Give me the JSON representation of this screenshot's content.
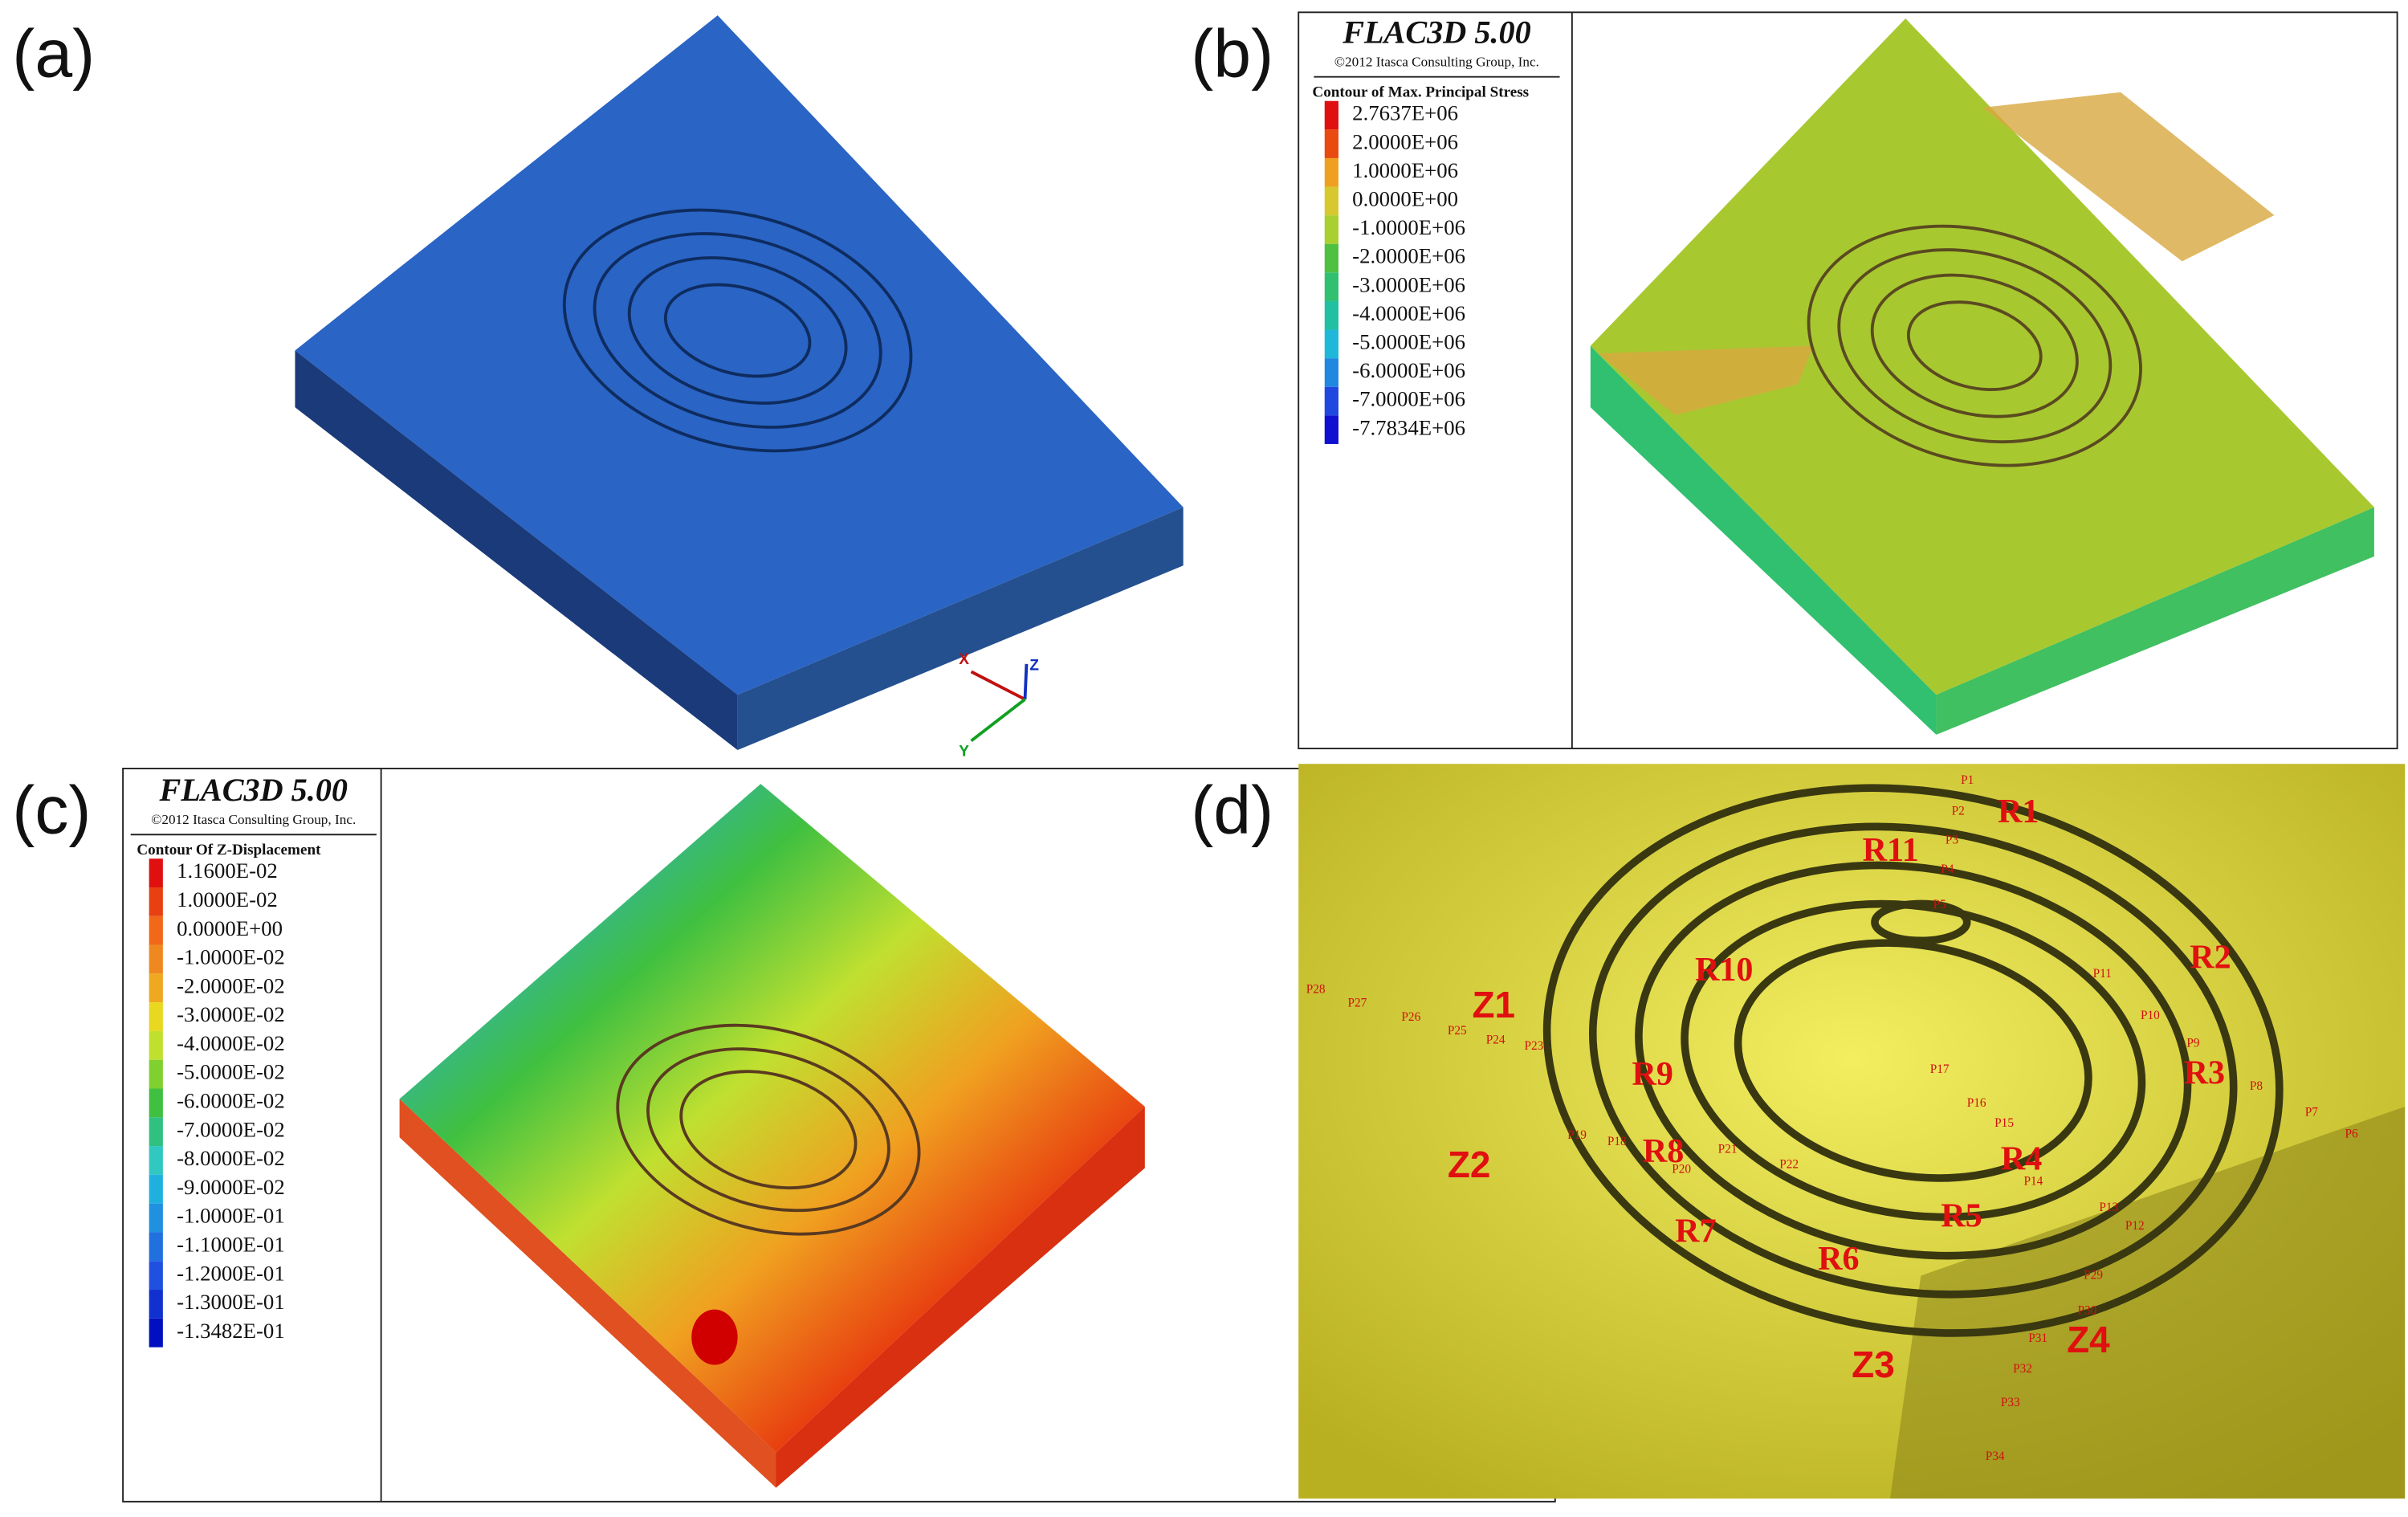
{
  "panels": [
    {
      "label": "(a)",
      "axes": [
        "X",
        "Z",
        "Y"
      ]
    },
    {
      "label": "(b)",
      "legend": {
        "software": "FLAC3D 5.00",
        "copyright": "©2012 Itasca Consulting Group, Inc.",
        "title": "Contour of Max. Principal Stress",
        "entries": [
          {
            "label": "2.7637E+06",
            "color": "#e01010"
          },
          {
            "label": "2.0000E+06",
            "color": "#e84a10"
          },
          {
            "label": "1.0000E+06",
            "color": "#f0a020"
          },
          {
            "label": "0.0000E+00",
            "color": "#d8c830"
          },
          {
            "label": "-1.0000E+06",
            "color": "#a8d030"
          },
          {
            "label": "-2.0000E+06",
            "color": "#50c040"
          },
          {
            "label": "-3.0000E+06",
            "color": "#30c070"
          },
          {
            "label": "-4.0000E+06",
            "color": "#20c0a0"
          },
          {
            "label": "-5.0000E+06",
            "color": "#20b8d8"
          },
          {
            "label": "-6.0000E+06",
            "color": "#2088e0"
          },
          {
            "label": "-7.0000E+06",
            "color": "#2048e0"
          },
          {
            "label": "-7.7834E+06",
            "color": "#1010d0"
          }
        ]
      }
    },
    {
      "label": "(c)",
      "legend": {
        "software": "FLAC3D 5.00",
        "copyright": "©2012 Itasca Consulting Group, Inc.",
        "title": "Contour Of Z-Displacement",
        "entries": [
          {
            "label": "1.1600E-02",
            "color": "#e01010"
          },
          {
            "label": "1.0000E-02",
            "color": "#e84010"
          },
          {
            "label": "0.0000E+00",
            "color": "#f06818"
          },
          {
            "label": "-1.0000E-02",
            "color": "#f08820"
          },
          {
            "label": "-2.0000E-02",
            "color": "#f0a820"
          },
          {
            "label": "-3.0000E-02",
            "color": "#e8d820"
          },
          {
            "label": "-4.0000E-02",
            "color": "#c0e030"
          },
          {
            "label": "-5.0000E-02",
            "color": "#80d030"
          },
          {
            "label": "-6.0000E-02",
            "color": "#40c040"
          },
          {
            "label": "-7.0000E-02",
            "color": "#30c080"
          },
          {
            "label": "-8.0000E-02",
            "color": "#30c8c0"
          },
          {
            "label": "-9.0000E-02",
            "color": "#20b0e0"
          },
          {
            "label": "-1.0000E-01",
            "color": "#2090e0"
          },
          {
            "label": "-1.1000E-01",
            "color": "#2070e0"
          },
          {
            "label": "-1.2000E-01",
            "color": "#2050e0"
          },
          {
            "label": "-1.3000E-01",
            "color": "#1030d0"
          },
          {
            "label": "-1.3482E-01",
            "color": "#0010c0"
          }
        ]
      }
    },
    {
      "label": "(d)",
      "sections": [
        "R1",
        "R2",
        "R3",
        "R4",
        "R5",
        "R6",
        "R7",
        "R8",
        "R9",
        "R10",
        "R11"
      ],
      "zones": [
        "Z1",
        "Z2",
        "Z3",
        "Z4"
      ],
      "points": [
        "P1",
        "P2",
        "P3",
        "P4",
        "P5",
        "P6",
        "P7",
        "P8",
        "P9",
        "P10",
        "P11",
        "P12",
        "P13",
        "P14",
        "P15",
        "P16",
        "P17",
        "P18",
        "P19",
        "P20",
        "P21",
        "P22",
        "P23",
        "P24",
        "P25",
        "P26",
        "P27",
        "P28",
        "P29",
        "P30",
        "P31",
        "P32",
        "P33",
        "P34"
      ]
    }
  ]
}
